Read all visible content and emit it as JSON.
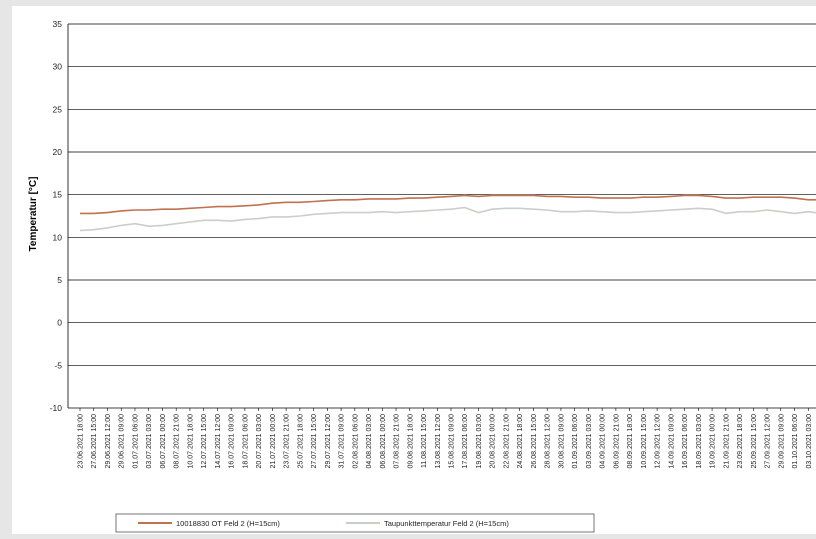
{
  "chart_data": {
    "type": "line",
    "title": "",
    "xlabel": "",
    "ylabel": "Temperatur [°C]",
    "ylim": [
      -10,
      35
    ],
    "yticks": [
      35,
      30,
      25,
      20,
      15,
      10,
      5,
      0,
      -5,
      -10
    ],
    "grid": true,
    "legend_position": "bottom",
    "x": [
      "23.06.2021 18:00",
      "27.06.2021 15:00",
      "29.06.2021 12:00",
      "29.06.2021 09:00",
      "01.07.2021 06:00",
      "03.07.2021 03:00",
      "06.07.2021 00:00",
      "08.07.2021 21:00",
      "10.07.2021 18:00",
      "12.07.2021 15:00",
      "14.07.2021 12:00",
      "16.07.2021 09:00",
      "18.07.2021 06:00",
      "20.07.2021 03:00",
      "21.07.2021 00:00",
      "23.07.2021 21:00",
      "25.07.2021 18:00",
      "27.07.2021 15:00",
      "29.07.2021 12:00",
      "31.07.2021 09:00",
      "02.08.2021 06:00",
      "04.08.2021 03:00",
      "06.08.2021 00:00",
      "07.08.2021 21:00",
      "09.08.2021 18:00",
      "11.08.2021 15:00",
      "13.08.2021 12:00",
      "15.08.2021 09:00",
      "17.08.2021 06:00",
      "19.08.2021 03:00",
      "20.08.2021 00:00",
      "22.08.2021 21:00",
      "24.08.2021 18:00",
      "26.08.2021 15:00",
      "28.08.2021 12:00",
      "30.08.2021 09:00",
      "01.09.2021 06:00",
      "03.09.2021 03:00",
      "04.09.2021 00:00",
      "06.09.2021 21:00",
      "08.09.2021 18:00",
      "10.09.2021 15:00",
      "12.09.2021 12:00",
      "14.09.2021 09:00",
      "16.09.2021 06:00",
      "18.09.2021 03:00",
      "19.09.2021 00:00",
      "21.09.2021 21:00",
      "23.09.2021 18:00",
      "25.09.2021 15:00",
      "27.09.2021 12:00",
      "29.09.2021 09:00",
      "01.10.2021 06:00",
      "03.10.2021 03:00",
      "04.10.2021 21:00"
    ],
    "series": [
      {
        "name": "10018830 OT Feld 2 (H=15cm)",
        "color": "#c0714f",
        "values": [
          12.8,
          12.8,
          12.9,
          13.1,
          13.2,
          13.2,
          13.3,
          13.3,
          13.4,
          13.5,
          13.6,
          13.6,
          13.7,
          13.8,
          14.0,
          14.1,
          14.1,
          14.2,
          14.3,
          14.4,
          14.4,
          14.5,
          14.5,
          14.5,
          14.6,
          14.6,
          14.7,
          14.8,
          14.9,
          14.8,
          14.9,
          14.9,
          14.9,
          14.9,
          14.8,
          14.8,
          14.7,
          14.7,
          14.6,
          14.6,
          14.6,
          14.7,
          14.7,
          14.8,
          14.9,
          14.9,
          14.8,
          14.6,
          14.6,
          14.7,
          14.7,
          14.7,
          14.6,
          14.4,
          14.4
        ]
      },
      {
        "name": "Taupunkttemperatur Feld 2  (H=15cm)",
        "color": "#c8cfc8",
        "values": [
          10.8,
          10.9,
          11.1,
          11.4,
          11.6,
          11.3,
          11.4,
          11.6,
          11.8,
          12.0,
          12.0,
          11.9,
          12.1,
          12.2,
          12.4,
          12.4,
          12.5,
          12.7,
          12.8,
          12.9,
          12.9,
          12.9,
          13.0,
          12.9,
          13.0,
          13.1,
          13.2,
          13.3,
          13.5,
          12.9,
          13.3,
          13.4,
          13.4,
          13.3,
          13.2,
          13.0,
          13.0,
          13.1,
          13.0,
          12.9,
          12.9,
          13.0,
          13.1,
          13.2,
          13.3,
          13.4,
          13.3,
          12.8,
          13.0,
          13.0,
          13.2,
          13.0,
          12.8,
          13.0,
          12.8
        ]
      }
    ]
  }
}
